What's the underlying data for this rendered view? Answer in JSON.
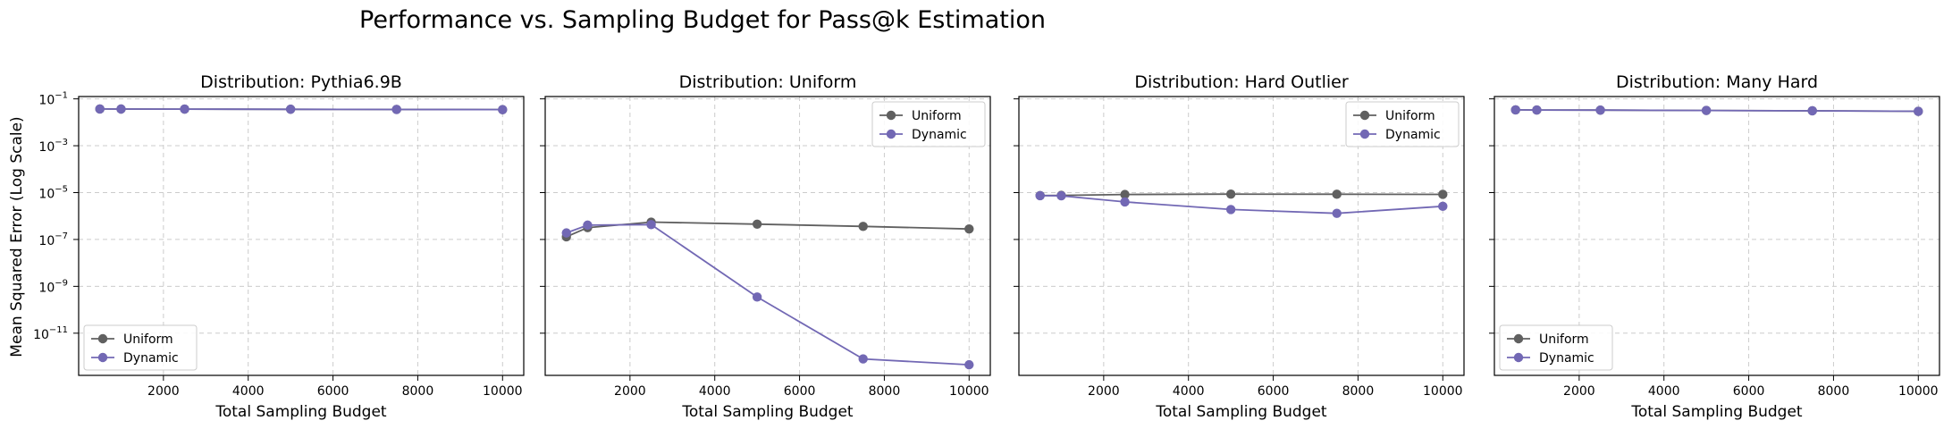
{
  "figure": {
    "title": "Performance vs. Sampling Budget for Pass@k Estimation",
    "ylabel": "Mean Squared Error (Log Scale)"
  },
  "colors": {
    "uniform": "#606060",
    "dynamic": "#7268b4",
    "grid": "#cccccc",
    "axis": "#000000"
  },
  "chart_data": [
    {
      "type": "line",
      "title": "Distribution: Pythia6.9B",
      "xlabel": "Total Sampling Budget",
      "ylabel": "Mean Squared Error (Log Scale)",
      "yscale": "log",
      "xlim": [
        0,
        10500
      ],
      "ylim_log10": [
        -12.8,
        -0.9
      ],
      "xticks": [
        2000,
        4000,
        6000,
        8000,
        10000
      ],
      "xtick_labels": [
        "2000",
        "4000",
        "6000",
        "8000",
        "10000"
      ],
      "yticks_log10": [
        -11,
        -9,
        -7,
        -5,
        -3,
        -1
      ],
      "ytick_labels": [
        "10",
        "10",
        "10",
        "10",
        "10",
        "10"
      ],
      "ytick_exponents": [
        "−11",
        "−9",
        "−7",
        "−5",
        "−3",
        "−1"
      ],
      "show_ytick_labels": true,
      "legend": "lower-left",
      "legend_labels": [
        "Uniform",
        "Dynamic"
      ],
      "grid": true,
      "x": [
        500,
        1000,
        2500,
        5000,
        7500,
        10000
      ],
      "series": [
        {
          "name": "Uniform",
          "key": "uniform",
          "values": [
            0.037,
            0.0368,
            0.0365,
            0.036,
            0.0353,
            0.0348
          ]
        },
        {
          "name": "Dynamic",
          "key": "dynamic",
          "values": [
            0.037,
            0.0368,
            0.0365,
            0.036,
            0.0353,
            0.0348
          ]
        }
      ]
    },
    {
      "type": "line",
      "title": "Distribution: Uniform",
      "xlabel": "Total Sampling Budget",
      "yscale": "log",
      "xlim": [
        0,
        10500
      ],
      "ylim_log10": [
        -12.8,
        -0.9
      ],
      "xticks": [
        2000,
        4000,
        6000,
        8000,
        10000
      ],
      "xtick_labels": [
        "2000",
        "4000",
        "6000",
        "8000",
        "10000"
      ],
      "yticks_log10": [
        -11,
        -9,
        -7,
        -5,
        -3,
        -1
      ],
      "ytick_labels": [],
      "ytick_exponents": [],
      "show_ytick_labels": false,
      "legend": "top-right",
      "legend_labels": [
        "Uniform",
        "Dynamic"
      ],
      "grid": true,
      "x": [
        500,
        1000,
        2500,
        5000,
        7500,
        10000
      ],
      "series": [
        {
          "name": "Uniform",
          "key": "uniform",
          "values": [
            1.3e-07,
            3.2e-07,
            5.5e-07,
            4.5e-07,
            3.6e-07,
            2.8e-07
          ]
        },
        {
          "name": "Dynamic",
          "key": "dynamic",
          "values": [
            1.9e-07,
            4.1e-07,
            4.3e-07,
            3.5e-10,
            8e-13,
            4.5e-13
          ]
        }
      ]
    },
    {
      "type": "line",
      "title": "Distribution: Hard Outlier",
      "xlabel": "Total Sampling Budget",
      "yscale": "log",
      "xlim": [
        0,
        10500
      ],
      "ylim_log10": [
        -12.8,
        -0.9
      ],
      "xticks": [
        2000,
        4000,
        6000,
        8000,
        10000
      ],
      "xtick_labels": [
        "2000",
        "4000",
        "6000",
        "8000",
        "10000"
      ],
      "yticks_log10": [
        -11,
        -9,
        -7,
        -5,
        -3,
        -1
      ],
      "ytick_labels": [],
      "ytick_exponents": [],
      "show_ytick_labels": false,
      "legend": "top-right",
      "legend_labels": [
        "Uniform",
        "Dynamic"
      ],
      "grid": true,
      "x": [
        500,
        1000,
        2500,
        5000,
        7500,
        10000
      ],
      "series": [
        {
          "name": "Uniform",
          "key": "uniform",
          "values": [
            7.5e-06,
            7.6e-06,
            8.3e-06,
            8.6e-06,
            8.5e-06,
            8.4e-06
          ]
        },
        {
          "name": "Dynamic",
          "key": "dynamic",
          "values": [
            7.4e-06,
            7.3e-06,
            4e-06,
            1.9e-06,
            1.3e-06,
            2.6e-06
          ]
        }
      ]
    },
    {
      "type": "line",
      "title": "Distribution: Many Hard",
      "xlabel": "Total Sampling Budget",
      "yscale": "log",
      "xlim": [
        0,
        10500
      ],
      "ylim_log10": [
        -12.8,
        -0.9
      ],
      "xticks": [
        2000,
        4000,
        6000,
        8000,
        10000
      ],
      "xtick_labels": [
        "2000",
        "4000",
        "6000",
        "8000",
        "10000"
      ],
      "yticks_log10": [
        -11,
        -9,
        -7,
        -5,
        -3,
        -1
      ],
      "ytick_labels": [],
      "ytick_exponents": [],
      "show_ytick_labels": false,
      "legend": "lower-left",
      "legend_labels": [
        "Uniform",
        "Dynamic"
      ],
      "grid": true,
      "x": [
        500,
        1000,
        2500,
        5000,
        7500,
        10000
      ],
      "series": [
        {
          "name": "Uniform",
          "key": "uniform",
          "values": [
            0.034,
            0.0335,
            0.033,
            0.032,
            0.031,
            0.0295
          ]
        },
        {
          "name": "Dynamic",
          "key": "dynamic",
          "values": [
            0.034,
            0.0335,
            0.033,
            0.032,
            0.031,
            0.0295
          ]
        }
      ]
    }
  ]
}
